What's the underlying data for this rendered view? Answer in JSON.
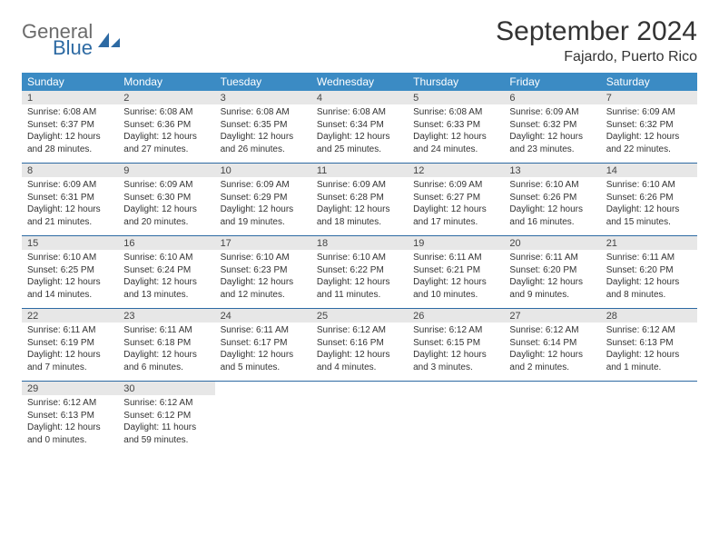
{
  "logo": {
    "general": "General",
    "blue": "Blue"
  },
  "title": "September 2024",
  "location": "Fajardo, Puerto Rico",
  "colors": {
    "header_bg": "#3b8bc4",
    "header_text": "#ffffff",
    "daynum_bg": "#e7e7e7",
    "rule": "#2d6aa3",
    "logo_gray": "#6b6b6b",
    "logo_blue": "#2d6aa3"
  },
  "weekdays": [
    "Sunday",
    "Monday",
    "Tuesday",
    "Wednesday",
    "Thursday",
    "Friday",
    "Saturday"
  ],
  "weeks": [
    [
      {
        "n": "1",
        "sr": "6:08 AM",
        "ss": "6:37 PM",
        "dl": "12 hours and 28 minutes."
      },
      {
        "n": "2",
        "sr": "6:08 AM",
        "ss": "6:36 PM",
        "dl": "12 hours and 27 minutes."
      },
      {
        "n": "3",
        "sr": "6:08 AM",
        "ss": "6:35 PM",
        "dl": "12 hours and 26 minutes."
      },
      {
        "n": "4",
        "sr": "6:08 AM",
        "ss": "6:34 PM",
        "dl": "12 hours and 25 minutes."
      },
      {
        "n": "5",
        "sr": "6:08 AM",
        "ss": "6:33 PM",
        "dl": "12 hours and 24 minutes."
      },
      {
        "n": "6",
        "sr": "6:09 AM",
        "ss": "6:32 PM",
        "dl": "12 hours and 23 minutes."
      },
      {
        "n": "7",
        "sr": "6:09 AM",
        "ss": "6:32 PM",
        "dl": "12 hours and 22 minutes."
      }
    ],
    [
      {
        "n": "8",
        "sr": "6:09 AM",
        "ss": "6:31 PM",
        "dl": "12 hours and 21 minutes."
      },
      {
        "n": "9",
        "sr": "6:09 AM",
        "ss": "6:30 PM",
        "dl": "12 hours and 20 minutes."
      },
      {
        "n": "10",
        "sr": "6:09 AM",
        "ss": "6:29 PM",
        "dl": "12 hours and 19 minutes."
      },
      {
        "n": "11",
        "sr": "6:09 AM",
        "ss": "6:28 PM",
        "dl": "12 hours and 18 minutes."
      },
      {
        "n": "12",
        "sr": "6:09 AM",
        "ss": "6:27 PM",
        "dl": "12 hours and 17 minutes."
      },
      {
        "n": "13",
        "sr": "6:10 AM",
        "ss": "6:26 PM",
        "dl": "12 hours and 16 minutes."
      },
      {
        "n": "14",
        "sr": "6:10 AM",
        "ss": "6:26 PM",
        "dl": "12 hours and 15 minutes."
      }
    ],
    [
      {
        "n": "15",
        "sr": "6:10 AM",
        "ss": "6:25 PM",
        "dl": "12 hours and 14 minutes."
      },
      {
        "n": "16",
        "sr": "6:10 AM",
        "ss": "6:24 PM",
        "dl": "12 hours and 13 minutes."
      },
      {
        "n": "17",
        "sr": "6:10 AM",
        "ss": "6:23 PM",
        "dl": "12 hours and 12 minutes."
      },
      {
        "n": "18",
        "sr": "6:10 AM",
        "ss": "6:22 PM",
        "dl": "12 hours and 11 minutes."
      },
      {
        "n": "19",
        "sr": "6:11 AM",
        "ss": "6:21 PM",
        "dl": "12 hours and 10 minutes."
      },
      {
        "n": "20",
        "sr": "6:11 AM",
        "ss": "6:20 PM",
        "dl": "12 hours and 9 minutes."
      },
      {
        "n": "21",
        "sr": "6:11 AM",
        "ss": "6:20 PM",
        "dl": "12 hours and 8 minutes."
      }
    ],
    [
      {
        "n": "22",
        "sr": "6:11 AM",
        "ss": "6:19 PM",
        "dl": "12 hours and 7 minutes."
      },
      {
        "n": "23",
        "sr": "6:11 AM",
        "ss": "6:18 PM",
        "dl": "12 hours and 6 minutes."
      },
      {
        "n": "24",
        "sr": "6:11 AM",
        "ss": "6:17 PM",
        "dl": "12 hours and 5 minutes."
      },
      {
        "n": "25",
        "sr": "6:12 AM",
        "ss": "6:16 PM",
        "dl": "12 hours and 4 minutes."
      },
      {
        "n": "26",
        "sr": "6:12 AM",
        "ss": "6:15 PM",
        "dl": "12 hours and 3 minutes."
      },
      {
        "n": "27",
        "sr": "6:12 AM",
        "ss": "6:14 PM",
        "dl": "12 hours and 2 minutes."
      },
      {
        "n": "28",
        "sr": "6:12 AM",
        "ss": "6:13 PM",
        "dl": "12 hours and 1 minute."
      }
    ],
    [
      {
        "n": "29",
        "sr": "6:12 AM",
        "ss": "6:13 PM",
        "dl": "12 hours and 0 minutes."
      },
      {
        "n": "30",
        "sr": "6:12 AM",
        "ss": "6:12 PM",
        "dl": "11 hours and 59 minutes."
      },
      null,
      null,
      null,
      null,
      null
    ]
  ],
  "labels": {
    "sunrise": "Sunrise:",
    "sunset": "Sunset:",
    "daylight": "Daylight:"
  }
}
